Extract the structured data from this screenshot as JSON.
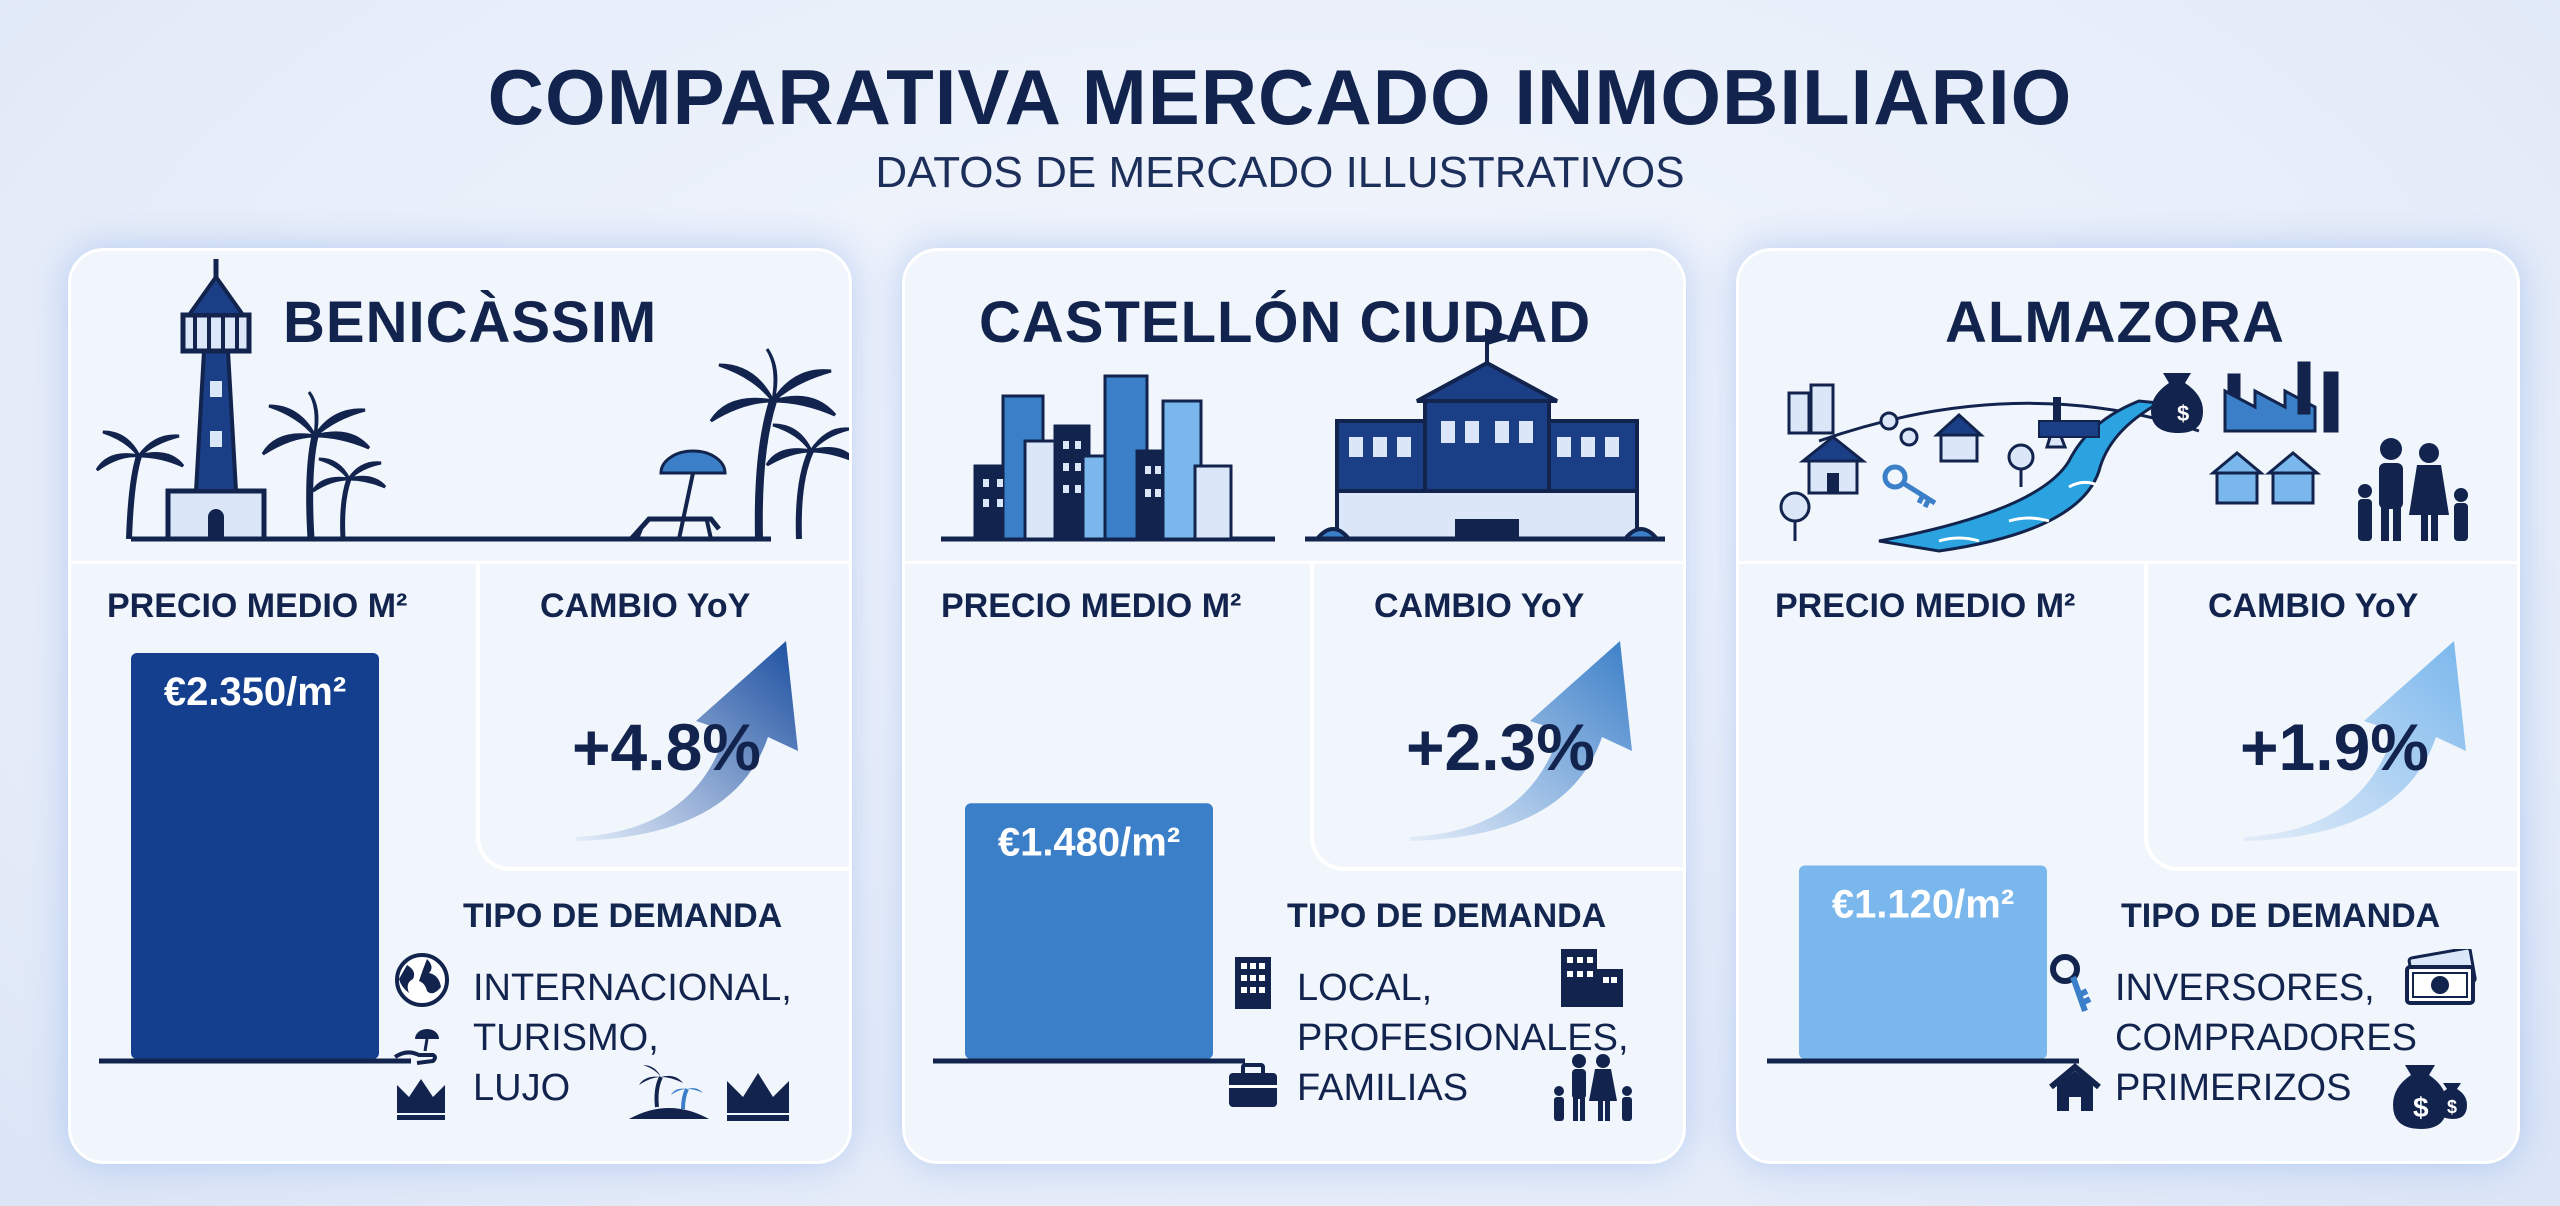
{
  "header": {
    "title": "COMPARATIVA MERCADO INMOBILIARIO",
    "subtitle": "DATOS DE MERCADO ILLUSTRATIVOS"
  },
  "labels": {
    "price": "PRECIO MEDIO M²",
    "yoy": "CAMBIO YoY",
    "demand": "TIPO DE DEMANDA"
  },
  "colors": {
    "navy": "#12244d",
    "bar_benicassim": "#143f8f",
    "bar_castellon": "#3b7fc8",
    "bar_almazora": "#79b7ec",
    "arrow_light": "#e3ecf9",
    "arrow_dark": "#1c4fa0"
  },
  "cards": [
    {
      "name": "BENICÀSSIM",
      "price_label": "€2.350/m²",
      "yoy": "+4.8%",
      "demand": [
        "INTERNACIONAL,",
        "TURISMO,",
        "LUJO"
      ],
      "icons": [
        "lighthouse-icon",
        "palm-tree-icon",
        "beach-umbrella-icon",
        "globe-icon",
        "hand-umbrella-icon",
        "crown-icon",
        "island-icon"
      ]
    },
    {
      "name": "CASTELLÓN CIUDAD",
      "price_label": "€1.480/m²",
      "yoy": "+2.3%",
      "demand": [
        "LOCAL,",
        "PROFESIONALES,",
        "FAMILIAS"
      ],
      "icons": [
        "skyline-icon",
        "city-hall-icon",
        "building-icon",
        "briefcase-icon",
        "family-icon"
      ]
    },
    {
      "name": "ALMAZORA",
      "price_label": "€1.120/m²",
      "yoy": "+1.9%",
      "demand": [
        "INVERSORES,",
        "COMPRADORES",
        "PRIMERIZOS"
      ],
      "icons": [
        "town-river-icon",
        "factory-icon",
        "key-icon",
        "house-icon",
        "banknote-icon",
        "money-bags-icon",
        "family-icon"
      ]
    }
  ],
  "chart_data": {
    "type": "bar",
    "title": "COMPARATIVA MERCADO INMOBILIARIO",
    "subtitle": "DATOS DE MERCADO ILLUSTRATIVOS",
    "categories": [
      "BENICÀSSIM",
      "CASTELLÓN CIUDAD",
      "ALMAZORA"
    ],
    "series": [
      {
        "name": "PRECIO MEDIO M²",
        "values": [
          2350,
          1480,
          1120
        ]
      }
    ],
    "yoy_change_percent": [
      4.8,
      2.3,
      1.9
    ],
    "unit": "€/m²",
    "ylim": [
      0,
      2350
    ],
    "grid": false,
    "legend": "none"
  }
}
